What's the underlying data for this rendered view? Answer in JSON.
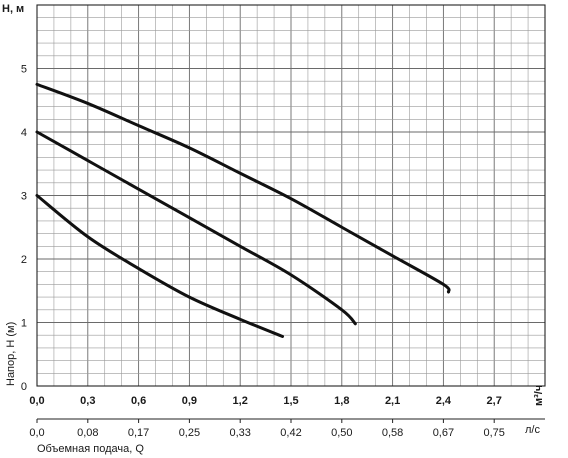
{
  "chart_data": {
    "type": "line",
    "ylabel_top": "H, м",
    "ylabel_side": "Напор, H (м)",
    "xlabel_unit_primary": "м³/ч",
    "xlabel_unit_secondary": "л/с",
    "xlabel_secondary": "Объемная подача, Q",
    "xlim": [
      0,
      3.0
    ],
    "ylim": [
      0,
      6
    ],
    "x_ticks": [
      "0,0",
      "0,3",
      "0,6",
      "0,9",
      "1,2",
      "1,5",
      "1,8",
      "2,1",
      "2,4",
      "2,7"
    ],
    "x_ticks_secondary": [
      "0,0",
      "0,08",
      "0,17",
      "0,25",
      "0,33",
      "0,42",
      "0,50",
      "0,58",
      "0,67",
      "0,75"
    ],
    "y_ticks": [
      "0",
      "1",
      "2",
      "3",
      "4",
      "5"
    ],
    "grid": true,
    "series": [
      {
        "x": [
          0,
          0.3,
          0.6,
          0.9,
          1.2,
          1.45
        ],
        "y": [
          3.0,
          2.35,
          1.85,
          1.4,
          1.05,
          0.78
        ]
      },
      {
        "x": [
          0,
          0.3,
          0.6,
          0.9,
          1.2,
          1.5,
          1.8,
          1.88
        ],
        "y": [
          4.0,
          3.55,
          3.1,
          2.65,
          2.2,
          1.75,
          1.2,
          0.98
        ]
      },
      {
        "x": [
          0,
          0.3,
          0.6,
          0.9,
          1.2,
          1.5,
          1.8,
          2.1,
          2.4,
          2.43
        ],
        "y": [
          4.75,
          4.45,
          4.1,
          3.75,
          3.35,
          2.95,
          2.5,
          2.05,
          1.6,
          1.48
        ]
      }
    ]
  }
}
